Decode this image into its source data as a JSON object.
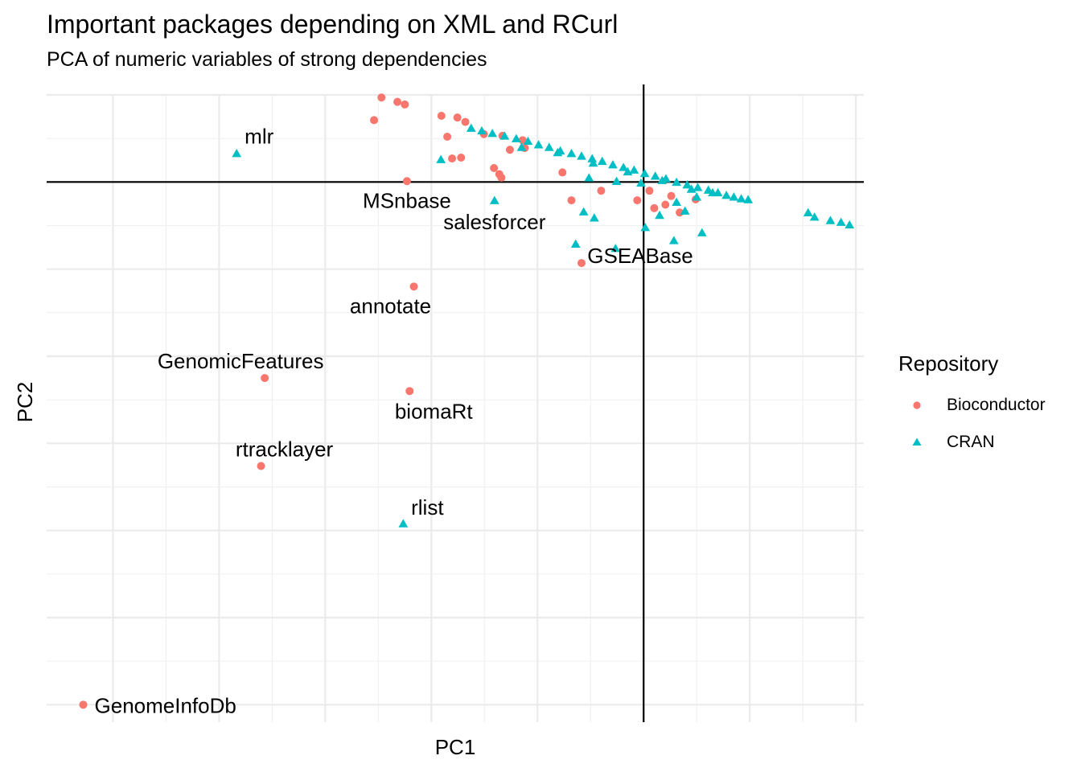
{
  "chart_data": {
    "type": "scatter",
    "title": "Important packages depending on XML and RCurl",
    "subtitle": "PCA of numeric variables of strong dependencies",
    "xlabel": "PC1",
    "ylabel": "PC2",
    "xlim": [
      -11.25,
      4.15
    ],
    "ylim": [
      -6.2,
      1.0
    ],
    "grid": true,
    "reference_lines": {
      "x": 0,
      "y": 0
    },
    "legend": {
      "title": "Repository",
      "position": "right"
    },
    "colors": {
      "Bioconductor": "#F8766D",
      "CRAN": "#00BFC4"
    },
    "series": [
      {
        "name": "Bioconductor",
        "shape": "circle",
        "points": [
          [
            -10.56,
            -6.0
          ],
          [
            -7.14,
            -2.25
          ],
          [
            -7.21,
            -3.26
          ],
          [
            -4.33,
            -1.2
          ],
          [
            -4.41,
            -2.4
          ],
          [
            -1.17,
            -0.93
          ],
          [
            -4.46,
            0.01
          ],
          [
            -4.94,
            0.97
          ],
          [
            -4.64,
            0.92
          ],
          [
            -4.5,
            0.89
          ],
          [
            -5.08,
            0.71
          ],
          [
            -3.81,
            0.76
          ],
          [
            -3.51,
            0.74
          ],
          [
            -3.36,
            0.69
          ],
          [
            -3.7,
            0.52
          ],
          [
            -3.01,
            0.55
          ],
          [
            -2.66,
            0.53
          ],
          [
            -2.28,
            0.48
          ],
          [
            -2.24,
            0.39
          ],
          [
            -2.52,
            0.37
          ],
          [
            -3.44,
            0.28
          ],
          [
            -3.61,
            0.27
          ],
          [
            -2.82,
            0.16
          ],
          [
            -2.72,
            0.09
          ],
          [
            -2.68,
            0.05
          ],
          [
            -1.53,
            0.11
          ],
          [
            -1.36,
            -0.21
          ],
          [
            -0.8,
            -0.1
          ],
          [
            -0.12,
            -0.21
          ],
          [
            0.11,
            -0.1
          ],
          [
            0.2,
            -0.3
          ],
          [
            0.41,
            -0.26
          ],
          [
            0.68,
            -0.35
          ],
          [
            0.98,
            -0.2
          ],
          [
            0.52,
            -0.16
          ]
        ]
      },
      {
        "name": "CRAN",
        "shape": "triangle",
        "points": [
          [
            -7.67,
            0.33
          ],
          [
            -4.53,
            -3.92
          ],
          [
            -3.82,
            0.26
          ],
          [
            -2.81,
            -0.21
          ],
          [
            -1.28,
            -0.71
          ],
          [
            -1.13,
            -0.34
          ],
          [
            -0.93,
            -0.41
          ],
          [
            -0.53,
            -0.76
          ],
          [
            0.03,
            -0.52
          ],
          [
            0.3,
            -0.38
          ],
          [
            0.57,
            -0.67
          ],
          [
            0.78,
            -0.33
          ],
          [
            1.1,
            -0.58
          ],
          [
            0.62,
            -0.23
          ],
          [
            -1.03,
            0.05
          ],
          [
            -0.51,
            0.01
          ],
          [
            -0.05,
            -0.01
          ],
          [
            1.0,
            -0.17
          ],
          [
            3.1,
            -0.35
          ],
          [
            3.22,
            -0.4
          ],
          [
            3.52,
            -0.44
          ],
          [
            3.72,
            -0.46
          ],
          [
            3.88,
            -0.49
          ],
          [
            -3.25,
            0.62
          ],
          [
            -3.05,
            0.59
          ],
          [
            -2.85,
            0.56
          ],
          [
            -2.62,
            0.53
          ],
          [
            -2.4,
            0.5
          ],
          [
            -2.18,
            0.47
          ],
          [
            -1.98,
            0.43
          ],
          [
            -1.78,
            0.4
          ],
          [
            -1.57,
            0.36
          ],
          [
            -1.36,
            0.33
          ],
          [
            -1.17,
            0.3
          ],
          [
            -0.97,
            0.27
          ],
          [
            -0.78,
            0.24
          ],
          [
            -0.58,
            0.2
          ],
          [
            -0.38,
            0.17
          ],
          [
            -0.18,
            0.14
          ],
          [
            0.02,
            0.1
          ],
          [
            0.22,
            0.07
          ],
          [
            0.42,
            0.04
          ],
          [
            0.62,
            0.0
          ],
          [
            0.82,
            -0.03
          ],
          [
            1.02,
            -0.06
          ],
          [
            1.22,
            -0.09
          ],
          [
            1.4,
            -0.12
          ],
          [
            1.56,
            -0.15
          ],
          [
            1.7,
            -0.17
          ],
          [
            1.84,
            -0.19
          ],
          [
            1.97,
            -0.2
          ],
          [
            -2.3,
            0.4
          ],
          [
            -1.62,
            0.34
          ],
          [
            -0.95,
            0.22
          ],
          [
            -0.3,
            0.12
          ],
          [
            0.35,
            0.02
          ],
          [
            0.9,
            -0.08
          ],
          [
            1.3,
            -0.12
          ]
        ]
      }
    ],
    "annotations": [
      {
        "text": "mlr",
        "x": -7.67,
        "y": 0.33
      },
      {
        "text": "MSnbase",
        "x": -4.46,
        "y": 0.01
      },
      {
        "text": "salesforcer",
        "x": -2.81,
        "y": -0.21
      },
      {
        "text": "GSEABase",
        "x": -1.17,
        "y": -0.93
      },
      {
        "text": "annotate",
        "x": -4.33,
        "y": -1.2
      },
      {
        "text": "GenomicFeatures",
        "x": -7.14,
        "y": -2.25
      },
      {
        "text": "biomaRt",
        "x": -4.41,
        "y": -2.4
      },
      {
        "text": "rtracklayer",
        "x": -7.21,
        "y": -3.26
      },
      {
        "text": "rlist",
        "x": -4.53,
        "y": -3.92
      },
      {
        "text": "GenomeInfoDb",
        "x": -10.56,
        "y": -6.0
      }
    ]
  }
}
